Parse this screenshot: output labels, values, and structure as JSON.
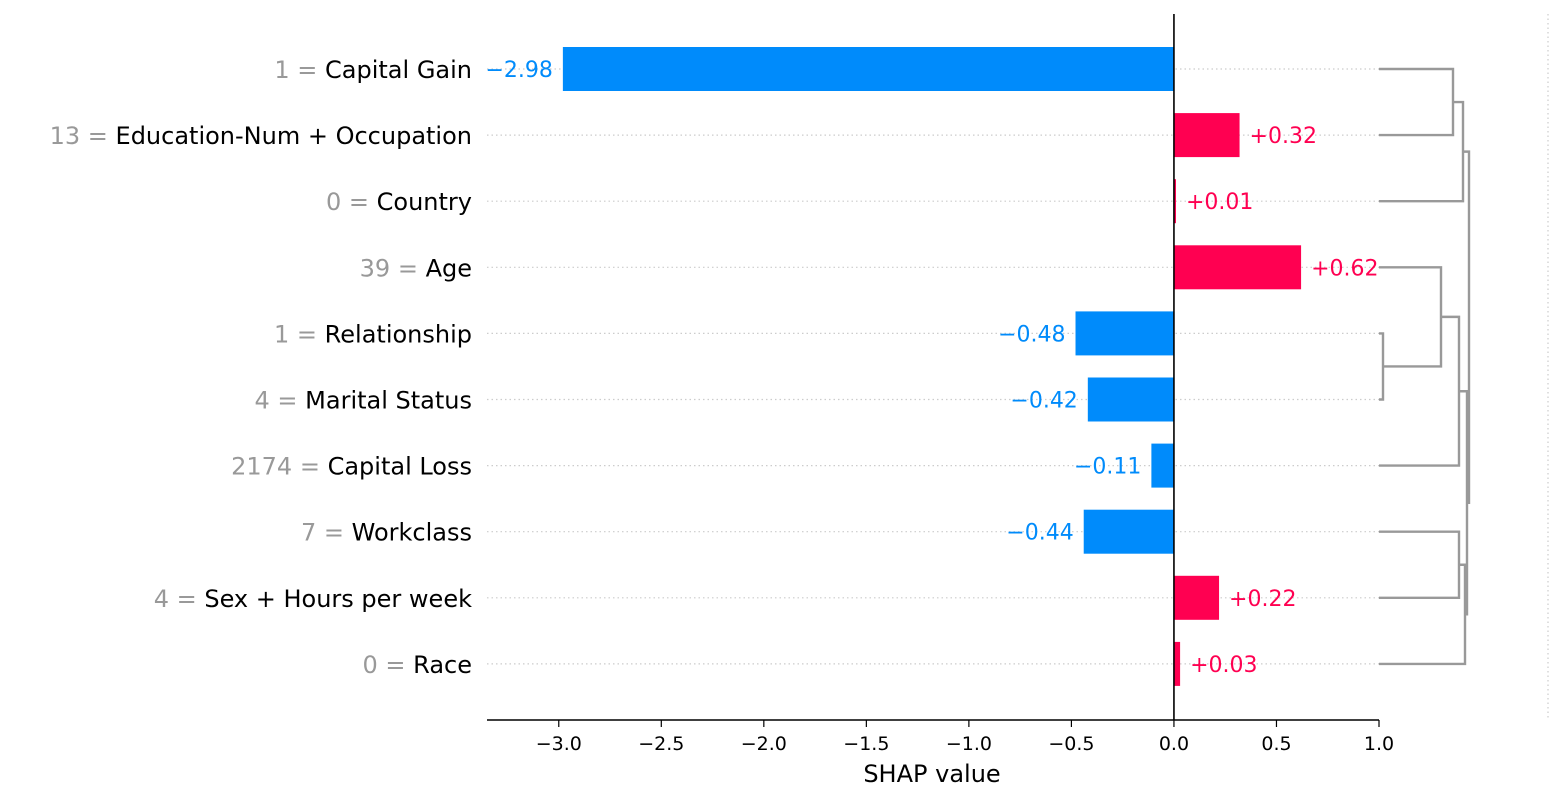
{
  "colors": {
    "positive": "#ff0051",
    "negative": "#008bfb",
    "feature_value": "#999999",
    "gridline": "#cccccc",
    "dendrogram": "#999999",
    "axis": "#000000"
  },
  "chart_data": {
    "type": "bar",
    "orientation": "horizontal",
    "xlabel": "SHAP value",
    "xlim": [
      -3.35,
      1.0
    ],
    "xticks": [
      -3.0,
      -2.5,
      -2.0,
      -1.5,
      -1.0,
      -0.5,
      0.0,
      0.5,
      1.0
    ],
    "xtick_labels": [
      "−3.0",
      "−2.5",
      "−2.0",
      "−1.5",
      "−1.0",
      "−0.5",
      "0.0",
      "0.5",
      "1.0"
    ],
    "rows": [
      {
        "feature": "Capital Gain",
        "feature_value": "1",
        "value": -2.98,
        "label": "−2.98"
      },
      {
        "feature": "Education-Num + Occupation",
        "feature_value": "13",
        "value": 0.32,
        "label": "+0.32"
      },
      {
        "feature": "Country",
        "feature_value": "0",
        "value": 0.01,
        "label": "+0.01"
      },
      {
        "feature": "Age",
        "feature_value": "39",
        "value": 0.62,
        "label": "+0.62"
      },
      {
        "feature": "Relationship",
        "feature_value": "1",
        "value": -0.48,
        "label": "−0.48"
      },
      {
        "feature": "Marital Status",
        "feature_value": "4",
        "value": -0.42,
        "label": "−0.42"
      },
      {
        "feature": "Capital Loss",
        "feature_value": "2174",
        "value": -0.11,
        "label": "−0.11"
      },
      {
        "feature": "Workclass",
        "feature_value": "7",
        "value": -0.44,
        "label": "−0.44"
      },
      {
        "feature": "Sex + Hours per week",
        "feature_value": "4",
        "value": 0.22,
        "label": "+0.22"
      },
      {
        "feature": "Race",
        "feature_value": "0",
        "value": 0.03,
        "label": "+0.03"
      }
    ],
    "dendrogram": true
  }
}
